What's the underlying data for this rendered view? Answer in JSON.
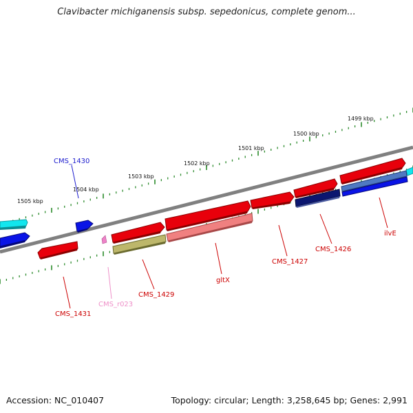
{
  "title": "Clavibacter michiganensis subsp. sepedonicus, complete genom...",
  "footer": {
    "accession": "Accession: NC_010407",
    "summary": "Topology: circular; Length: 3,258,645 bp; Genes: 2,991"
  },
  "colors": {
    "backbone": "#808080",
    "cds_red": "#e8000b",
    "cds_blue": "#0a14e6",
    "cds_navy": "#0b1670",
    "cds_pink": "#f08080",
    "cds_olive": "#bdb76b",
    "cds_cyan": "#12e6ee",
    "cds_steel": "#4f79c2",
    "rna_pink": "#ee82c8",
    "tick_green": "#2a8a2a"
  },
  "scale_labels": [
    "1505 kbp",
    "1504 kbp",
    "1503 kbp",
    "1502 kbp",
    "1501 kbp",
    "1500 kbp",
    "1499 kbp"
  ],
  "genes": [
    {
      "label": "CMS_1430",
      "color": "#1a1acd"
    },
    {
      "label": "CMS_1431",
      "color": "#cc0000"
    },
    {
      "label": "CMS_r023",
      "color": "#ee8fc8"
    },
    {
      "label": "CMS_1429",
      "color": "#cc0000"
    },
    {
      "label": "gltX",
      "color": "#cc0000"
    },
    {
      "label": "CMS_1427",
      "color": "#cc0000"
    },
    {
      "label": "CMS_1426",
      "color": "#cc0000"
    },
    {
      "label": "ilvE",
      "color": "#cc0000"
    }
  ]
}
